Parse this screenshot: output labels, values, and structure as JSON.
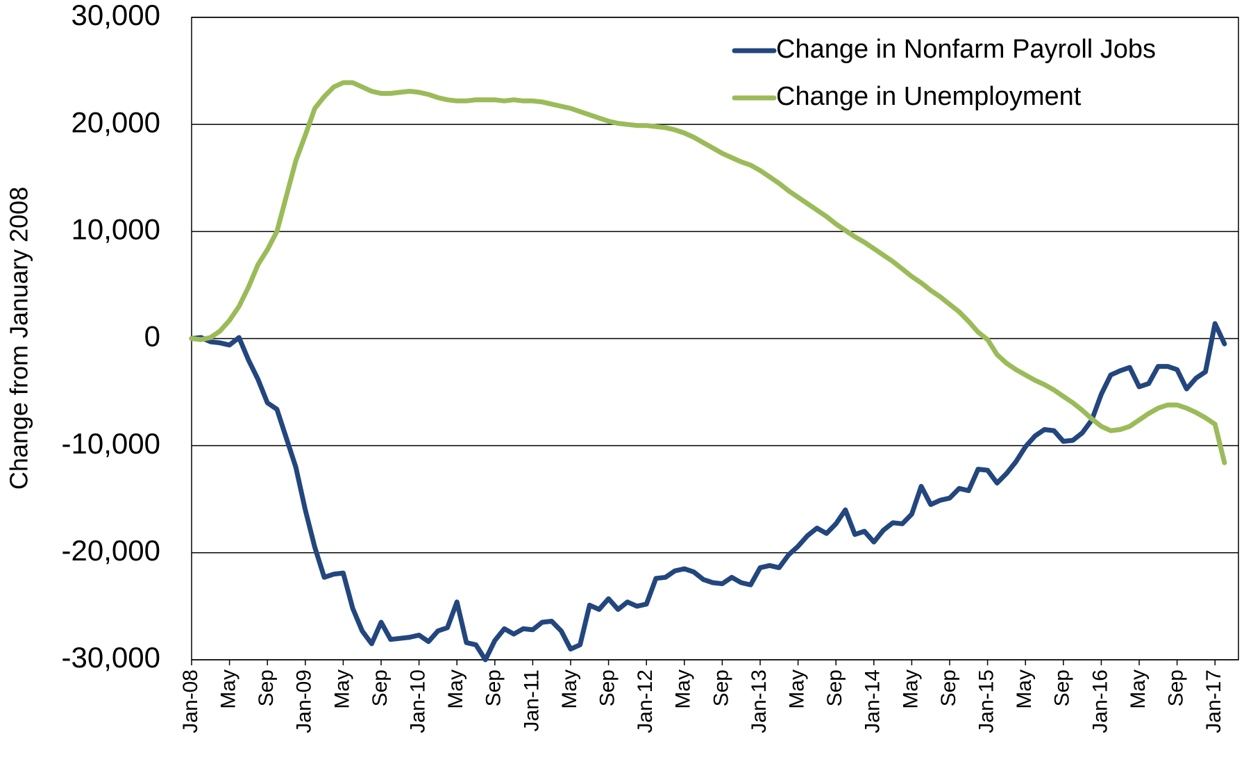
{
  "chart_data": {
    "type": "line",
    "y_label": "Change from January 2008",
    "categories": [
      "Jan-08",
      null,
      null,
      null,
      "May",
      null,
      null,
      null,
      "Sep",
      null,
      null,
      null,
      "Jan-09",
      null,
      null,
      null,
      "May",
      null,
      null,
      null,
      "Sep",
      null,
      null,
      null,
      "Jan-10",
      null,
      null,
      null,
      "May",
      null,
      null,
      null,
      "Sep",
      null,
      null,
      null,
      "Jan-11",
      null,
      null,
      null,
      "May",
      null,
      null,
      null,
      "Sep",
      null,
      null,
      null,
      "Jan-12",
      null,
      null,
      null,
      "May",
      null,
      null,
      null,
      "Sep",
      null,
      null,
      null,
      "Jan-13",
      null,
      null,
      null,
      "May",
      null,
      null,
      null,
      "Sep",
      null,
      null,
      null,
      "Jan-14",
      null,
      null,
      null,
      "May",
      null,
      null,
      null,
      "Sep",
      null,
      null,
      null,
      "Jan-15",
      null,
      null,
      null,
      "May",
      null,
      null,
      null,
      "Sep",
      null,
      null,
      null,
      "Jan-16",
      null,
      null,
      null,
      "May",
      null,
      null,
      null,
      "Sep",
      null,
      null,
      null,
      "Jan-17",
      null
    ],
    "series": [
      {
        "name": "Change in Nonfarm Payroll Jobs",
        "color": "#22467d",
        "values": [
          0,
          100,
          -300,
          -400,
          -600,
          100,
          -2000,
          -3800,
          -6000,
          -6600,
          -9300,
          -12000,
          -16000,
          -19500,
          -22300,
          -22000,
          -21900,
          -25200,
          -27300,
          -28500,
          -26500,
          -28100,
          -28000,
          -27900,
          -27700,
          -28300,
          -27300,
          -27000,
          -24600,
          -28400,
          -28600,
          -30000,
          -28200,
          -27100,
          -27600,
          -27100,
          -27200,
          -26500,
          -26400,
          -27300,
          -29000,
          -28600,
          -24900,
          -25300,
          -24300,
          -25300,
          -24600,
          -25000,
          -24800,
          -22400,
          -22300,
          -21700,
          -21500,
          -21800,
          -22500,
          -22800,
          -22900,
          -22300,
          -22800,
          -23000,
          -21400,
          -21200,
          -21400,
          -20200,
          -19400,
          -18400,
          -17700,
          -18200,
          -17300,
          -16000,
          -18300,
          -18000,
          -19000,
          -17900,
          -17200,
          -17300,
          -16400,
          -13800,
          -15500,
          -15100,
          -14900,
          -14000,
          -14200,
          -12200,
          -12300,
          -13500,
          -12600,
          -11500,
          -10100,
          -9100,
          -8500,
          -8600,
          -9600,
          -9500,
          -8800,
          -7600,
          -5200,
          -3400,
          -3000,
          -2700,
          -4500,
          -4200,
          -2600,
          -2600,
          -2900,
          -4700,
          -3700,
          -3100,
          1400,
          -500
        ]
      },
      {
        "name": "Change in Unemployment",
        "color": "#9bbb59",
        "values": [
          0,
          -100,
          100,
          700,
          1700,
          3000,
          4800,
          6900,
          8300,
          10000,
          13300,
          16600,
          19000,
          21500,
          22600,
          23500,
          23900,
          23900,
          23500,
          23100,
          22900,
          22900,
          23000,
          23100,
          23000,
          22800,
          22500,
          22300,
          22200,
          22200,
          22300,
          22300,
          22300,
          22200,
          22300,
          22200,
          22200,
          22100,
          21900,
          21700,
          21500,
          21200,
          20900,
          20600,
          20300,
          20100,
          20000,
          19900,
          19900,
          19800,
          19700,
          19500,
          19200,
          18800,
          18300,
          17800,
          17300,
          16900,
          16500,
          16200,
          15700,
          15100,
          14500,
          13800,
          13200,
          12600,
          12000,
          11400,
          10700,
          10100,
          9500,
          9000,
          8400,
          7800,
          7200,
          6500,
          5800,
          5200,
          4500,
          3900,
          3200,
          2500,
          1600,
          600,
          -100,
          -1500,
          -2300,
          -2900,
          -3400,
          -3900,
          -4300,
          -4800,
          -5400,
          -6000,
          -6700,
          -7500,
          -8200,
          -8600,
          -8500,
          -8200,
          -7600,
          -7000,
          -6500,
          -6200,
          -6200,
          -6500,
          -6900,
          -7400,
          -8000,
          -11600
        ]
      }
    ],
    "ylim": [
      -30000,
      30000
    ],
    "yticks": [
      {
        "value": -30000,
        "label": "-30,000"
      },
      {
        "value": -20000,
        "label": "-20,000"
      },
      {
        "value": -10000,
        "label": "-10,000"
      },
      0,
      {
        "value": 10000,
        "label": "10,000"
      },
      {
        "value": 20000,
        "label": "20,000"
      },
      {
        "value": 30000,
        "label": "30,000"
      }
    ],
    "grid": true,
    "legend": "top-right"
  }
}
